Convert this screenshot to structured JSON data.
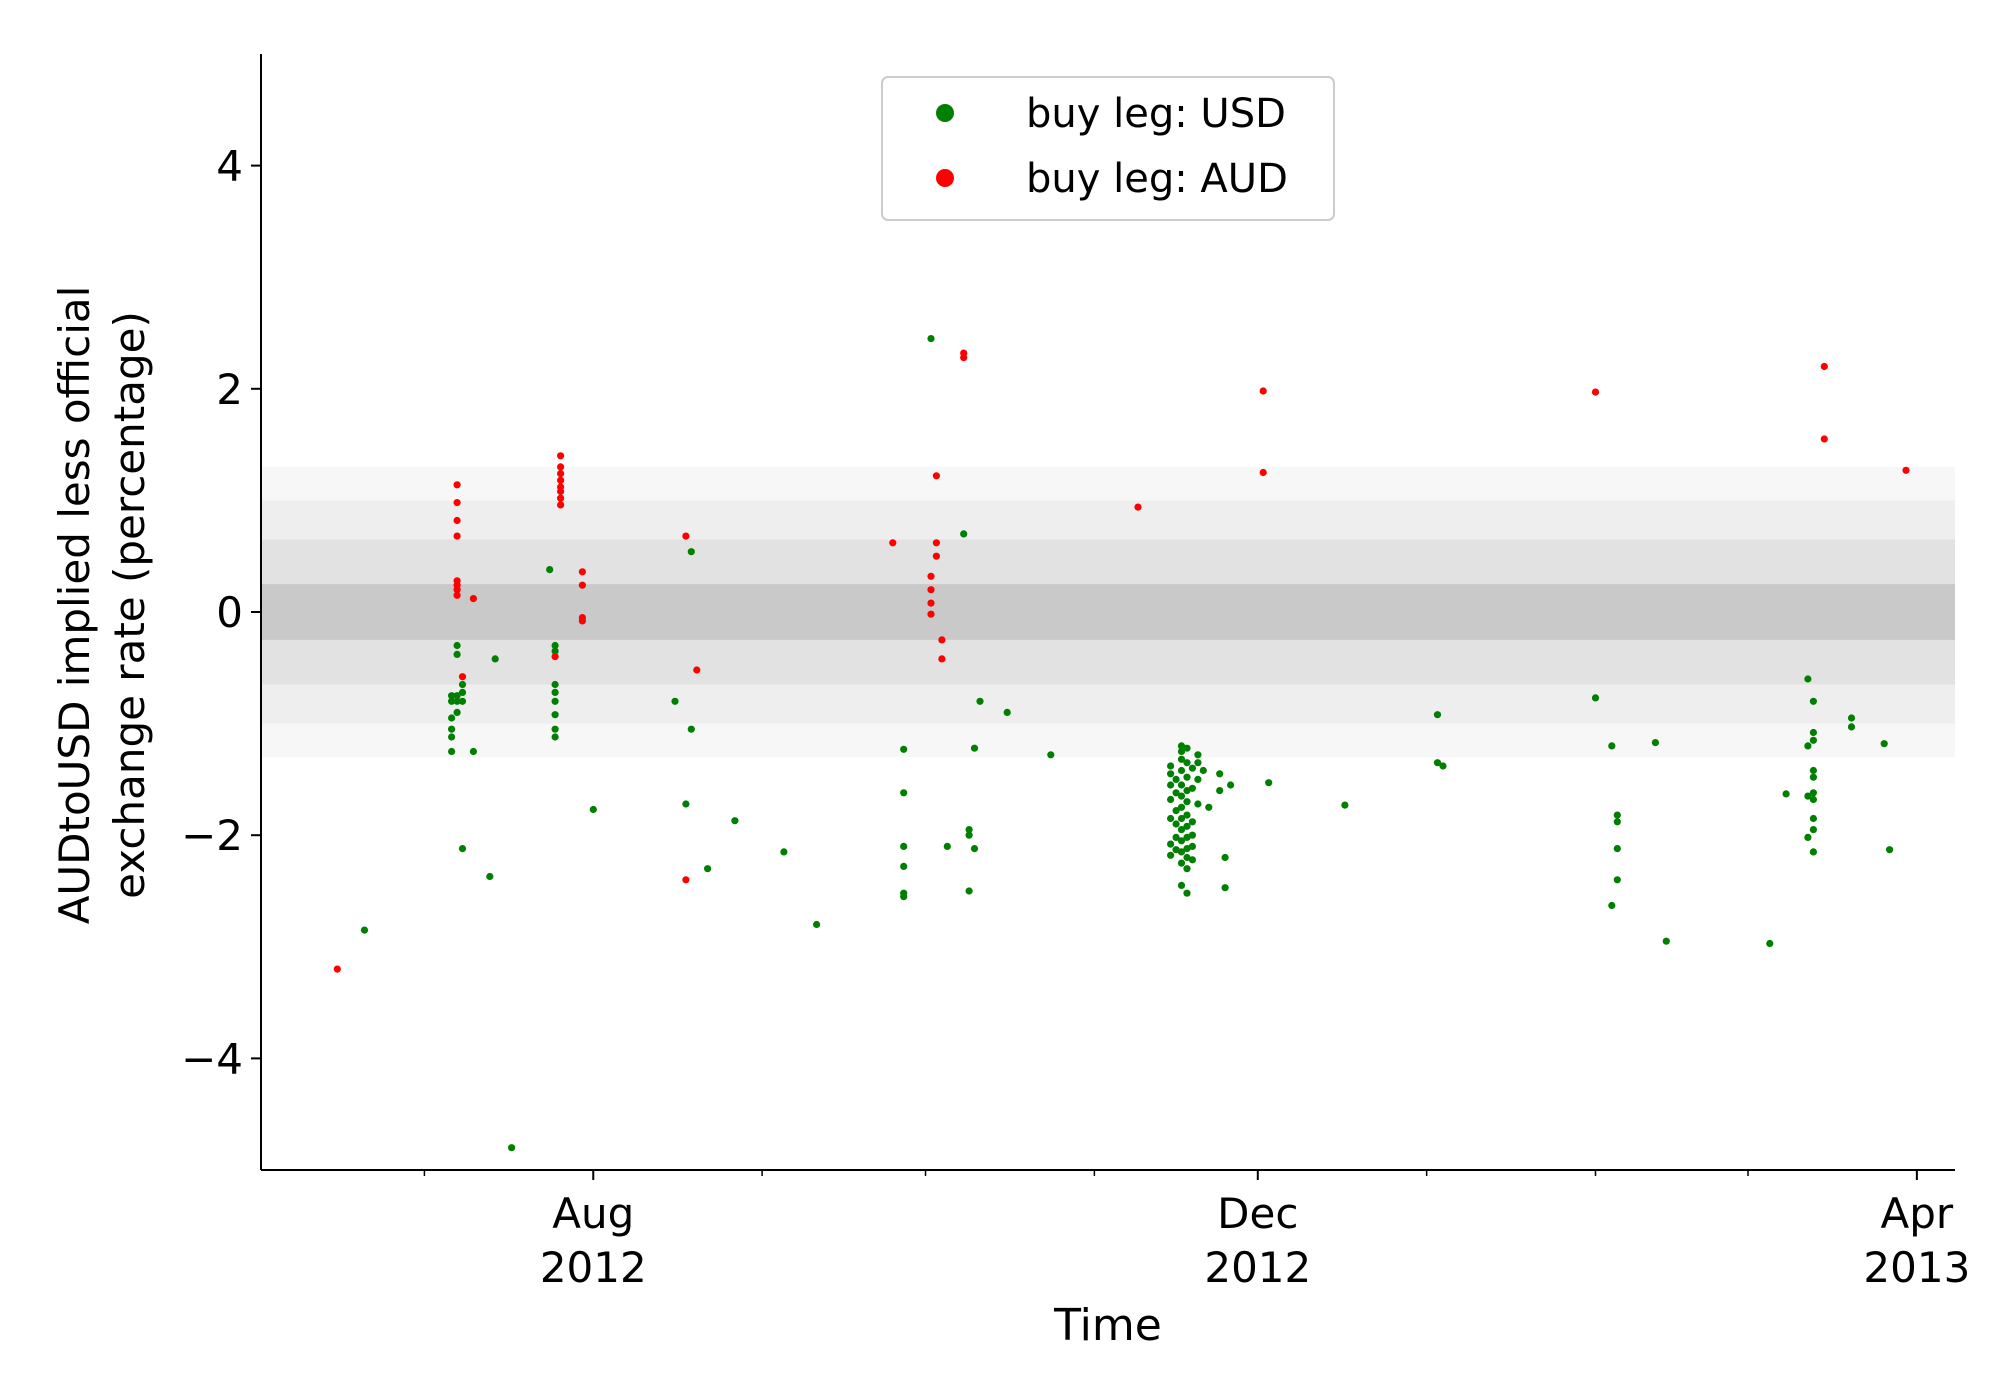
{
  "chart_data": {
    "type": "scatter",
    "xlabel": "Time",
    "ylabel_lines": [
      "AUDtoUSD implied less official",
      "exchange rate (percentage)"
    ],
    "ylim": [
      -5,
      5
    ],
    "xlim": [
      "2012-06-01",
      "2013-04-08"
    ],
    "yticks": [
      -4,
      -2,
      0,
      2,
      4
    ],
    "ytick_labels": [
      "−4",
      "−2",
      "0",
      "2",
      "4"
    ],
    "xticks": [
      {
        "date": "2012-08-01",
        "month": "Aug",
        "year": "2012"
      },
      {
        "date": "2012-12-01",
        "month": "Dec",
        "year": "2012"
      },
      {
        "date": "2013-04-01",
        "month": "Apr",
        "year": "2013"
      }
    ],
    "minor_xticks": [
      "2012-07-01",
      "2012-09-01",
      "2012-10-01",
      "2012-11-01",
      "2013-01-01",
      "2013-02-01",
      "2013-03-01"
    ],
    "bands": [
      {
        "from": -1.3,
        "to": 1.3,
        "color": "#f7f7f7"
      },
      {
        "from": -1.0,
        "to": 1.0,
        "color": "#eeeeee"
      },
      {
        "from": -0.65,
        "to": 0.65,
        "color": "#e2e2e2"
      },
      {
        "from": -0.25,
        "to": 0.25,
        "color": "#c9c9c9"
      }
    ],
    "legend_position": "top-center",
    "series": [
      {
        "name": "buy leg: USD",
        "color": "#008000",
        "points": [
          [
            "2012-06-20",
            -2.85
          ],
          [
            "2012-07-06",
            -0.75
          ],
          [
            "2012-07-06",
            -0.8
          ],
          [
            "2012-07-06",
            -0.95
          ],
          [
            "2012-07-06",
            -1.05
          ],
          [
            "2012-07-06",
            -1.12
          ],
          [
            "2012-07-06",
            -1.25
          ],
          [
            "2012-07-07",
            -0.3
          ],
          [
            "2012-07-07",
            -0.38
          ],
          [
            "2012-07-07",
            -0.75
          ],
          [
            "2012-07-07",
            -0.8
          ],
          [
            "2012-07-07",
            -0.9
          ],
          [
            "2012-07-08",
            -0.65
          ],
          [
            "2012-07-08",
            -0.72
          ],
          [
            "2012-07-08",
            -0.8
          ],
          [
            "2012-07-08",
            -2.12
          ],
          [
            "2012-07-10",
            -1.25
          ],
          [
            "2012-07-13",
            -2.37
          ],
          [
            "2012-07-14",
            -0.42
          ],
          [
            "2012-07-17",
            -4.8
          ],
          [
            "2012-07-24",
            0.38
          ],
          [
            "2012-07-25",
            -0.3
          ],
          [
            "2012-07-25",
            -0.35
          ],
          [
            "2012-07-25",
            -0.65
          ],
          [
            "2012-07-25",
            -0.72
          ],
          [
            "2012-07-25",
            -0.8
          ],
          [
            "2012-07-25",
            -0.92
          ],
          [
            "2012-07-25",
            -1.05
          ],
          [
            "2012-07-25",
            -1.12
          ],
          [
            "2012-08-01",
            -1.77
          ],
          [
            "2012-08-16",
            -0.8
          ],
          [
            "2012-08-18",
            -1.72
          ],
          [
            "2012-08-19",
            0.54
          ],
          [
            "2012-08-19",
            -1.05
          ],
          [
            "2012-08-22",
            -2.3
          ],
          [
            "2012-08-27",
            -1.87
          ],
          [
            "2012-09-05",
            -2.15
          ],
          [
            "2012-09-11",
            -2.8
          ],
          [
            "2012-09-27",
            -1.23
          ],
          [
            "2012-09-27",
            -1.62
          ],
          [
            "2012-09-27",
            -2.1
          ],
          [
            "2012-09-27",
            -2.28
          ],
          [
            "2012-09-27",
            -2.52
          ],
          [
            "2012-09-27",
            -2.55
          ],
          [
            "2012-10-02",
            2.45
          ],
          [
            "2012-10-05",
            -2.1
          ],
          [
            "2012-10-08",
            0.7
          ],
          [
            "2012-10-09",
            -1.95
          ],
          [
            "2012-10-09",
            -2.0
          ],
          [
            "2012-10-09",
            -2.5
          ],
          [
            "2012-10-10",
            -1.22
          ],
          [
            "2012-10-10",
            -2.12
          ],
          [
            "2012-10-11",
            -0.8
          ],
          [
            "2012-10-16",
            -0.9
          ],
          [
            "2012-10-24",
            -1.28
          ],
          [
            "2012-11-15",
            -1.38
          ],
          [
            "2012-11-15",
            -1.45
          ],
          [
            "2012-11-15",
            -1.55
          ],
          [
            "2012-11-15",
            -1.68
          ],
          [
            "2012-11-15",
            -1.85
          ],
          [
            "2012-11-15",
            -2.08
          ],
          [
            "2012-11-15",
            -2.18
          ],
          [
            "2012-11-16",
            -1.5
          ],
          [
            "2012-11-16",
            -1.62
          ],
          [
            "2012-11-16",
            -1.78
          ],
          [
            "2012-11-16",
            -1.9
          ],
          [
            "2012-11-16",
            -2.02
          ],
          [
            "2012-11-16",
            -2.13
          ],
          [
            "2012-11-17",
            -1.2
          ],
          [
            "2012-11-17",
            -1.25
          ],
          [
            "2012-11-17",
            -1.32
          ],
          [
            "2012-11-17",
            -1.42
          ],
          [
            "2012-11-17",
            -1.55
          ],
          [
            "2012-11-17",
            -1.65
          ],
          [
            "2012-11-17",
            -1.75
          ],
          [
            "2012-11-17",
            -1.85
          ],
          [
            "2012-11-17",
            -1.95
          ],
          [
            "2012-11-17",
            -2.05
          ],
          [
            "2012-11-17",
            -2.15
          ],
          [
            "2012-11-17",
            -2.25
          ],
          [
            "2012-11-17",
            -2.45
          ],
          [
            "2012-11-18",
            -1.22
          ],
          [
            "2012-11-18",
            -1.35
          ],
          [
            "2012-11-18",
            -1.48
          ],
          [
            "2012-11-18",
            -1.6
          ],
          [
            "2012-11-18",
            -1.7
          ],
          [
            "2012-11-18",
            -1.82
          ],
          [
            "2012-11-18",
            -1.92
          ],
          [
            "2012-11-18",
            -2.02
          ],
          [
            "2012-11-18",
            -2.12
          ],
          [
            "2012-11-18",
            -2.2
          ],
          [
            "2012-11-18",
            -2.3
          ],
          [
            "2012-11-18",
            -2.52
          ],
          [
            "2012-11-19",
            -1.4
          ],
          [
            "2012-11-19",
            -1.58
          ],
          [
            "2012-11-19",
            -1.88
          ],
          [
            "2012-11-19",
            -2.0
          ],
          [
            "2012-11-19",
            -2.1
          ],
          [
            "2012-11-19",
            -2.22
          ],
          [
            "2012-11-20",
            -1.28
          ],
          [
            "2012-11-20",
            -1.35
          ],
          [
            "2012-11-20",
            -1.5
          ],
          [
            "2012-11-20",
            -1.72
          ],
          [
            "2012-11-21",
            -1.42
          ],
          [
            "2012-11-22",
            -1.75
          ],
          [
            "2012-11-24",
            -1.45
          ],
          [
            "2012-11-24",
            -1.6
          ],
          [
            "2012-11-25",
            -2.2
          ],
          [
            "2012-11-25",
            -2.47
          ],
          [
            "2012-11-26",
            -1.55
          ],
          [
            "2012-12-03",
            -1.53
          ],
          [
            "2012-12-17",
            -1.73
          ],
          [
            "2013-01-03",
            -0.92
          ],
          [
            "2013-01-03",
            -1.35
          ],
          [
            "2013-01-04",
            -1.38
          ],
          [
            "2013-02-01",
            -0.77
          ],
          [
            "2013-02-04",
            -1.2
          ],
          [
            "2013-02-04",
            -2.63
          ],
          [
            "2013-02-05",
            -1.82
          ],
          [
            "2013-02-05",
            -1.88
          ],
          [
            "2013-02-05",
            -2.12
          ],
          [
            "2013-02-05",
            -2.4
          ],
          [
            "2013-02-12",
            -1.17
          ],
          [
            "2013-02-14",
            -2.95
          ],
          [
            "2013-03-05",
            -2.97
          ],
          [
            "2013-03-08",
            -1.63
          ],
          [
            "2013-03-12",
            -0.6
          ],
          [
            "2013-03-12",
            -1.2
          ],
          [
            "2013-03-12",
            -1.65
          ],
          [
            "2013-03-12",
            -2.02
          ],
          [
            "2013-03-13",
            -0.8
          ],
          [
            "2013-03-13",
            -1.08
          ],
          [
            "2013-03-13",
            -1.15
          ],
          [
            "2013-03-13",
            -1.42
          ],
          [
            "2013-03-13",
            -1.48
          ],
          [
            "2013-03-13",
            -1.62
          ],
          [
            "2013-03-13",
            -1.68
          ],
          [
            "2013-03-13",
            -1.85
          ],
          [
            "2013-03-13",
            -1.95
          ],
          [
            "2013-03-13",
            -2.15
          ],
          [
            "2013-03-20",
            -0.95
          ],
          [
            "2013-03-20",
            -1.03
          ],
          [
            "2013-03-26",
            -1.18
          ],
          [
            "2013-03-27",
            -2.13
          ]
        ]
      },
      {
        "name": "buy leg: AUD",
        "color": "#ff0000",
        "points": [
          [
            "2012-06-15",
            -3.2
          ],
          [
            "2012-07-07",
            1.14
          ],
          [
            "2012-07-07",
            0.98
          ],
          [
            "2012-07-07",
            0.82
          ],
          [
            "2012-07-07",
            0.68
          ],
          [
            "2012-07-07",
            0.28
          ],
          [
            "2012-07-07",
            0.24
          ],
          [
            "2012-07-07",
            0.2
          ],
          [
            "2012-07-07",
            0.15
          ],
          [
            "2012-07-08",
            -0.58
          ],
          [
            "2012-07-10",
            0.12
          ],
          [
            "2012-07-25",
            -0.4
          ],
          [
            "2012-07-26",
            1.4
          ],
          [
            "2012-07-26",
            1.3
          ],
          [
            "2012-07-26",
            1.24
          ],
          [
            "2012-07-26",
            1.18
          ],
          [
            "2012-07-26",
            1.12
          ],
          [
            "2012-07-26",
            1.08
          ],
          [
            "2012-07-26",
            1.02
          ],
          [
            "2012-07-26",
            0.96
          ],
          [
            "2012-07-30",
            0.36
          ],
          [
            "2012-07-30",
            0.24
          ],
          [
            "2012-07-30",
            -0.05
          ],
          [
            "2012-07-30",
            -0.08
          ],
          [
            "2012-08-18",
            0.68
          ],
          [
            "2012-08-18",
            -2.4
          ],
          [
            "2012-08-20",
            -0.52
          ],
          [
            "2012-09-25",
            0.62
          ],
          [
            "2012-10-02",
            0.32
          ],
          [
            "2012-10-02",
            0.2
          ],
          [
            "2012-10-02",
            0.08
          ],
          [
            "2012-10-02",
            -0.02
          ],
          [
            "2012-10-03",
            0.62
          ],
          [
            "2012-10-03",
            1.22
          ],
          [
            "2012-10-03",
            0.5
          ],
          [
            "2012-10-04",
            -0.25
          ],
          [
            "2012-10-04",
            -0.42
          ],
          [
            "2012-10-08",
            2.32
          ],
          [
            "2012-10-08",
            2.28
          ],
          [
            "2012-11-09",
            0.94
          ],
          [
            "2012-12-02",
            1.98
          ],
          [
            "2012-12-02",
            1.25
          ],
          [
            "2013-02-01",
            1.97
          ],
          [
            "2013-03-15",
            2.2
          ],
          [
            "2013-03-15",
            1.55
          ],
          [
            "2013-03-30",
            1.27
          ]
        ]
      }
    ]
  }
}
